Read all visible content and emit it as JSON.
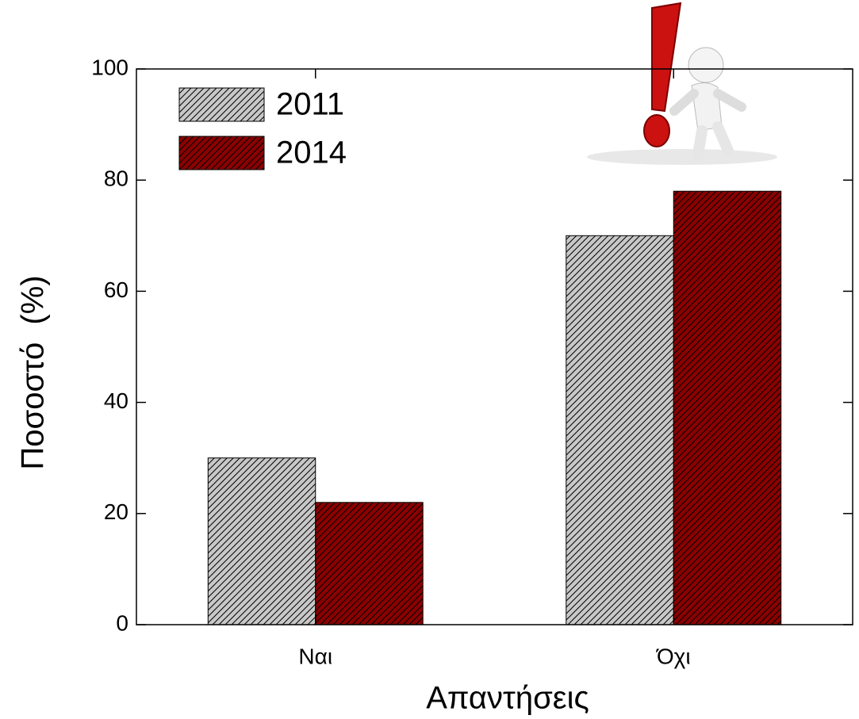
{
  "chart_data": {
    "type": "bar",
    "xlabel": "Απαντήσεις",
    "ylabel": "Ποσοστό  (%)",
    "categories": [
      "Ναι",
      "Όχι"
    ],
    "series": [
      {
        "name": "2011",
        "color": "#c8c8c8",
        "values": [
          30,
          70
        ]
      },
      {
        "name": "2014",
        "color": "#8b0000",
        "values": [
          22,
          78
        ]
      }
    ],
    "ylim": [
      0,
      100
    ],
    "yticks": [
      0,
      20,
      40,
      60,
      80,
      100
    ],
    "legend": "upper left",
    "hatch": true
  }
}
